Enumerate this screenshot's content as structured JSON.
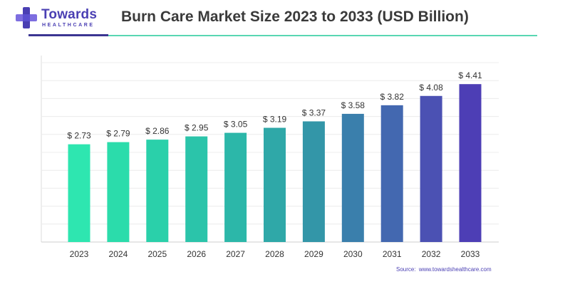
{
  "logo": {
    "name": "Towards",
    "tagline": "HEALTHCARE"
  },
  "chart_data": {
    "type": "bar",
    "title": "Burn Care Market Size 2023 to 2033 (USD Billion)",
    "categories": [
      "2023",
      "2024",
      "2025",
      "2026",
      "2027",
      "2028",
      "2029",
      "2030",
      "2031",
      "2032",
      "2033"
    ],
    "values": [
      2.73,
      2.79,
      2.86,
      2.95,
      3.05,
      3.19,
      3.37,
      3.58,
      3.82,
      4.08,
      4.41
    ],
    "value_labels": [
      "$ 2.73",
      "$ 2.79",
      "$ 2.86",
      "$ 2.95",
      "$ 3.05",
      "$ 3.19",
      "$ 3.37",
      "$ 3.58",
      "$ 3.82",
      "$ 4.08",
      "$ 4.41"
    ],
    "xlabel": "",
    "ylabel": "",
    "grid": true,
    "legend": "none",
    "bar_colors": [
      "#2ee6b0",
      "#2bdcab",
      "#2ad0aa",
      "#2bc4aa",
      "#2cb7a9",
      "#2fa8a8",
      "#3396a8",
      "#3a7fac",
      "#4368b0",
      "#4b51b3",
      "#4d3eb5"
    ]
  },
  "source": {
    "label": "Source:",
    "url": "www.towardshealthcare.com"
  }
}
